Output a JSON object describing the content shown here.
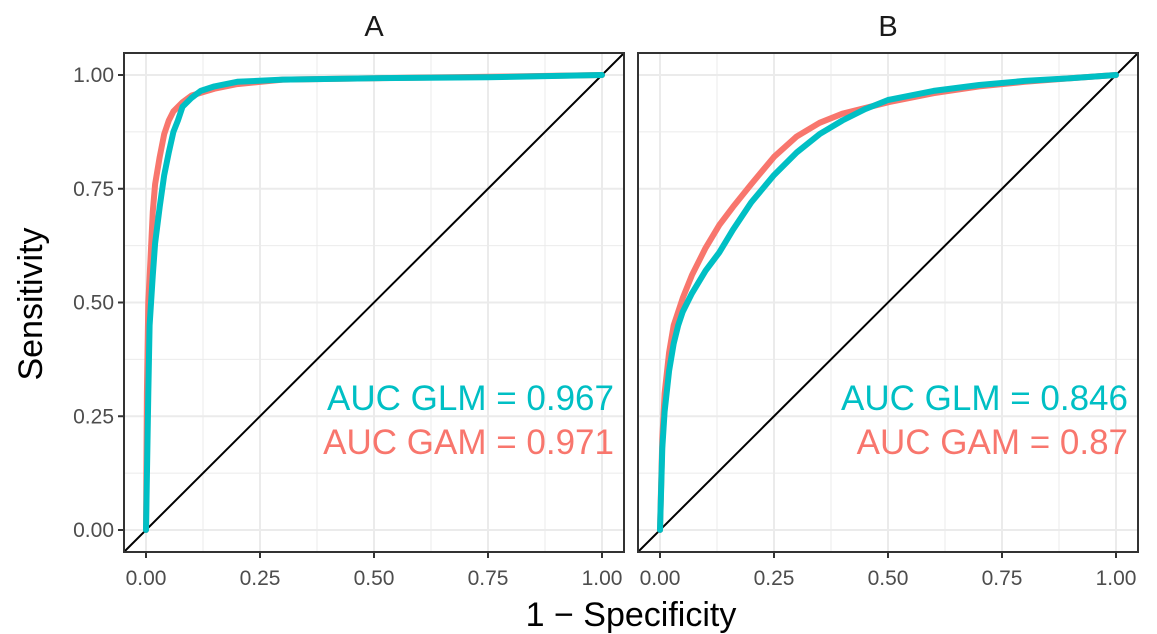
{
  "colors": {
    "glm": "#00BFC4",
    "gam": "#F8766D",
    "reference_line": "#000000",
    "grid": "#EBEBEB",
    "panel_border": "#333333"
  },
  "chart_data": {
    "type": "line",
    "xlabel": "1 − Specificity",
    "ylabel": "Sensitivity",
    "xlim": [
      0,
      1
    ],
    "ylim": [
      0,
      1
    ],
    "ticks": [
      "0.00",
      "0.25",
      "0.50",
      "0.75",
      "1.00"
    ],
    "tick_values": [
      0,
      0.25,
      0.5,
      0.75,
      1
    ],
    "grid": true,
    "reference_line": "diagonal",
    "panels": [
      {
        "title": "A",
        "annotations": [
          {
            "series": "glm",
            "text": "AUC GLM = 0.967"
          },
          {
            "series": "gam",
            "text": "AUC GAM = 0.971"
          }
        ],
        "series": [
          {
            "key": "gam",
            "points": [
              [
                0,
                0
              ],
              [
                0.002,
                0.3
              ],
              [
                0.005,
                0.5
              ],
              [
                0.01,
                0.6
              ],
              [
                0.015,
                0.7
              ],
              [
                0.02,
                0.76
              ],
              [
                0.03,
                0.82
              ],
              [
                0.04,
                0.87
              ],
              [
                0.05,
                0.9
              ],
              [
                0.06,
                0.92
              ],
              [
                0.08,
                0.94
              ],
              [
                0.1,
                0.955
              ],
              [
                0.15,
                0.97
              ],
              [
                0.2,
                0.98
              ],
              [
                0.3,
                0.99
              ],
              [
                0.5,
                0.993
              ],
              [
                0.75,
                0.996
              ],
              [
                1,
                1
              ]
            ]
          },
          {
            "key": "glm",
            "points": [
              [
                0,
                0
              ],
              [
                0.005,
                0.3
              ],
              [
                0.008,
                0.45
              ],
              [
                0.015,
                0.56
              ],
              [
                0.02,
                0.63
              ],
              [
                0.03,
                0.71
              ],
              [
                0.04,
                0.78
              ],
              [
                0.05,
                0.83
              ],
              [
                0.06,
                0.875
              ],
              [
                0.07,
                0.9
              ],
              [
                0.08,
                0.93
              ],
              [
                0.1,
                0.95
              ],
              [
                0.12,
                0.965
              ],
              [
                0.15,
                0.975
              ],
              [
                0.2,
                0.985
              ],
              [
                0.3,
                0.99
              ],
              [
                0.5,
                0.993
              ],
              [
                0.75,
                0.995
              ],
              [
                1,
                1
              ]
            ]
          }
        ]
      },
      {
        "title": "B",
        "annotations": [
          {
            "series": "glm",
            "text": "AUC GLM = 0.846"
          },
          {
            "series": "gam",
            "text": "AUC GAM = 0.87"
          }
        ],
        "series": [
          {
            "key": "gam",
            "points": [
              [
                0,
                0
              ],
              [
                0.005,
                0.2
              ],
              [
                0.01,
                0.3
              ],
              [
                0.02,
                0.39
              ],
              [
                0.03,
                0.45
              ],
              [
                0.05,
                0.51
              ],
              [
                0.07,
                0.56
              ],
              [
                0.1,
                0.62
              ],
              [
                0.13,
                0.67
              ],
              [
                0.16,
                0.71
              ],
              [
                0.2,
                0.76
              ],
              [
                0.25,
                0.82
              ],
              [
                0.3,
                0.865
              ],
              [
                0.35,
                0.895
              ],
              [
                0.4,
                0.915
              ],
              [
                0.5,
                0.94
              ],
              [
                0.6,
                0.96
              ],
              [
                0.7,
                0.975
              ],
              [
                0.8,
                0.985
              ],
              [
                0.9,
                0.993
              ],
              [
                1,
                1
              ]
            ]
          },
          {
            "key": "glm",
            "points": [
              [
                0,
                0
              ],
              [
                0.005,
                0.18
              ],
              [
                0.01,
                0.26
              ],
              [
                0.02,
                0.35
              ],
              [
                0.03,
                0.41
              ],
              [
                0.04,
                0.45
              ],
              [
                0.05,
                0.48
              ],
              [
                0.07,
                0.52
              ],
              [
                0.1,
                0.57
              ],
              [
                0.13,
                0.61
              ],
              [
                0.16,
                0.66
              ],
              [
                0.2,
                0.72
              ],
              [
                0.25,
                0.78
              ],
              [
                0.3,
                0.83
              ],
              [
                0.35,
                0.87
              ],
              [
                0.4,
                0.9
              ],
              [
                0.45,
                0.925
              ],
              [
                0.5,
                0.945
              ],
              [
                0.6,
                0.965
              ],
              [
                0.7,
                0.978
              ],
              [
                0.8,
                0.987
              ],
              [
                0.9,
                0.993
              ],
              [
                1,
                1
              ]
            ]
          }
        ]
      }
    ]
  }
}
